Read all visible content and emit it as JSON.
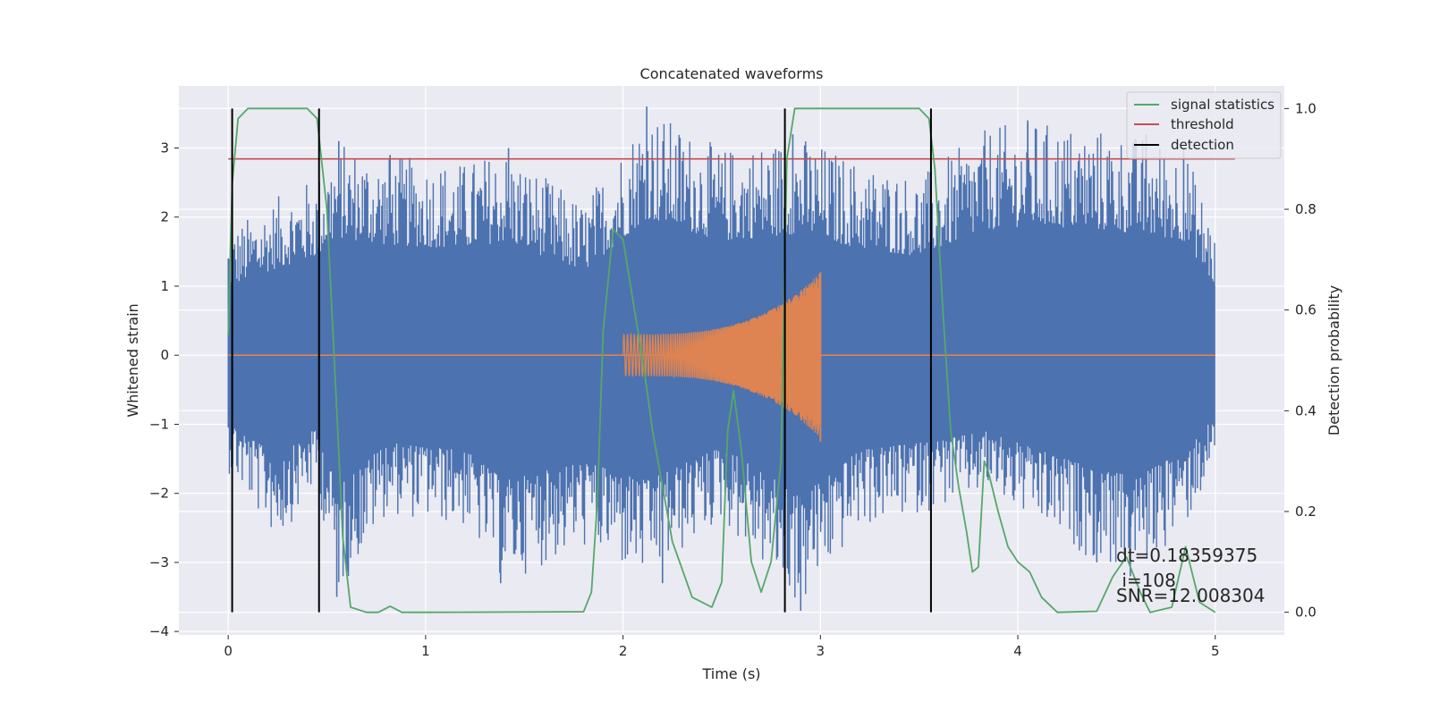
{
  "chart_data": {
    "type": "line",
    "title": "Concatenated waveforms",
    "xlabel": "Time (s)",
    "ylabel": "Whitened strain",
    "y2label": "Detection probability",
    "xlim": [
      -0.25,
      5.35
    ],
    "ylim": [
      -4.05,
      3.9
    ],
    "y2lim": [
      -0.045,
      1.045
    ],
    "x_ticks": [
      0,
      1,
      2,
      3,
      4,
      5
    ],
    "y_ticks": [
      -4,
      -3,
      -2,
      -1,
      0,
      1,
      2,
      3
    ],
    "y2_ticks": [
      0.0,
      0.2,
      0.4,
      0.6,
      0.8,
      1.0
    ],
    "x_tick_labels": [
      "0",
      "1",
      "2",
      "3",
      "4",
      "5"
    ],
    "y_tick_labels": [
      "−4",
      "−3",
      "−2",
      "−1",
      "0",
      "1",
      "2",
      "3"
    ],
    "y2_tick_labels": [
      "0.0",
      "0.2",
      "0.4",
      "0.6",
      "0.8",
      "1.0"
    ],
    "grid": true,
    "legend_position": "top-right",
    "series": [
      {
        "name": "",
        "axis": "left",
        "color": "#4c72b0",
        "kind": "noise",
        "x_range": [
          0,
          5
        ],
        "envelope": [
          {
            "x": 0.0,
            "max": 1.8,
            "min": -1.7
          },
          {
            "x": 0.25,
            "max": 2.3,
            "min": -2.7
          },
          {
            "x": 0.45,
            "max": 2.6,
            "min": -1.9
          },
          {
            "x": 0.55,
            "max": 3.1,
            "min": -3.5
          },
          {
            "x": 0.8,
            "max": 2.9,
            "min": -2.3
          },
          {
            "x": 1.2,
            "max": 2.8,
            "min": -2.5
          },
          {
            "x": 1.4,
            "max": 3.0,
            "min": -3.3
          },
          {
            "x": 1.8,
            "max": 2.2,
            "min": -2.8
          },
          {
            "x": 2.12,
            "max": 3.6,
            "min": -3.3
          },
          {
            "x": 2.5,
            "max": 3.0,
            "min": -2.4
          },
          {
            "x": 2.9,
            "max": 3.2,
            "min": -3.7
          },
          {
            "x": 3.2,
            "max": 2.8,
            "min": -2.5
          },
          {
            "x": 3.5,
            "max": 2.6,
            "min": -2.3
          },
          {
            "x": 3.85,
            "max": 3.3,
            "min": -2.0
          },
          {
            "x": 4.05,
            "max": 3.4,
            "min": -2.4
          },
          {
            "x": 4.4,
            "max": 3.3,
            "min": -3.0
          },
          {
            "x": 4.6,
            "max": 3.2,
            "min": -3.2
          },
          {
            "x": 4.85,
            "max": 3.0,
            "min": -2.5
          },
          {
            "x": 5.0,
            "max": 1.8,
            "min": -1.6
          }
        ],
        "spikes": [
          {
            "x": 0.55,
            "y": -3.5
          },
          {
            "x": 0.56,
            "y": 3.1
          },
          {
            "x": 0.82,
            "y": 2.9
          },
          {
            "x": 1.38,
            "y": -3.3
          },
          {
            "x": 1.42,
            "y": 3.0
          },
          {
            "x": 2.12,
            "y": 3.6
          },
          {
            "x": 2.2,
            "y": -3.3
          },
          {
            "x": 2.9,
            "y": -3.7
          },
          {
            "x": 2.86,
            "y": 3.2
          },
          {
            "x": 4.05,
            "y": 3.4
          },
          {
            "x": 4.4,
            "y": -3.0
          },
          {
            "x": 4.57,
            "y": -3.2
          },
          {
            "x": 4.65,
            "y": 3.2
          },
          {
            "x": 4.84,
            "y": 3.0
          }
        ]
      },
      {
        "name": "",
        "axis": "left",
        "color": "#dd8452",
        "kind": "chirp",
        "x_range": [
          0,
          5
        ],
        "chirp_start": 2.0,
        "chirp_end": 3.0,
        "amp_start": 0.3,
        "amp_end": 1.2,
        "peak_x": 3.0,
        "peak_max": 1.2,
        "peak_min": -1.25
      },
      {
        "name": "signal statistics",
        "axis": "right",
        "color": "#55a868",
        "points": [
          [
            0.0,
            0.55
          ],
          [
            0.02,
            0.85
          ],
          [
            0.05,
            0.98
          ],
          [
            0.1,
            1.0
          ],
          [
            0.4,
            1.0
          ],
          [
            0.45,
            0.98
          ],
          [
            0.5,
            0.8
          ],
          [
            0.55,
            0.4
          ],
          [
            0.58,
            0.15
          ],
          [
            0.62,
            0.01
          ],
          [
            0.7,
            0.0
          ],
          [
            0.76,
            0.0
          ],
          [
            0.82,
            0.012
          ],
          [
            0.88,
            0.0
          ],
          [
            1.0,
            0.0
          ],
          [
            1.8,
            0.001
          ],
          [
            1.84,
            0.04
          ],
          [
            1.87,
            0.22
          ],
          [
            1.9,
            0.56
          ],
          [
            1.95,
            0.76
          ],
          [
            2.0,
            0.74
          ],
          [
            2.05,
            0.62
          ],
          [
            2.1,
            0.5
          ],
          [
            2.15,
            0.36
          ],
          [
            2.25,
            0.14
          ],
          [
            2.35,
            0.03
          ],
          [
            2.45,
            0.01
          ],
          [
            2.5,
            0.06
          ],
          [
            2.53,
            0.36
          ],
          [
            2.56,
            0.44
          ],
          [
            2.6,
            0.32
          ],
          [
            2.65,
            0.1
          ],
          [
            2.7,
            0.04
          ],
          [
            2.75,
            0.1
          ],
          [
            2.8,
            0.3
          ],
          [
            2.83,
            0.9
          ],
          [
            2.87,
            1.0
          ],
          [
            2.9,
            1.0
          ],
          [
            3.5,
            1.0
          ],
          [
            3.55,
            0.98
          ],
          [
            3.58,
            0.88
          ],
          [
            3.62,
            0.6
          ],
          [
            3.66,
            0.36
          ],
          [
            3.7,
            0.25
          ],
          [
            3.74,
            0.16
          ],
          [
            3.77,
            0.08
          ],
          [
            3.8,
            0.09
          ],
          [
            3.83,
            0.3
          ],
          [
            3.85,
            0.28
          ],
          [
            3.9,
            0.2
          ],
          [
            3.95,
            0.13
          ],
          [
            4.0,
            0.1
          ],
          [
            4.06,
            0.08
          ],
          [
            4.12,
            0.03
          ],
          [
            4.2,
            0.0
          ],
          [
            4.4,
            0.002
          ],
          [
            4.48,
            0.07
          ],
          [
            4.55,
            0.11
          ],
          [
            4.62,
            0.04
          ],
          [
            4.67,
            0.0
          ],
          [
            4.78,
            0.01
          ],
          [
            4.85,
            0.13
          ],
          [
            4.92,
            0.02
          ],
          [
            5.0,
            0.0
          ]
        ]
      },
      {
        "name": "threshold",
        "axis": "right",
        "color": "#c44e52",
        "x_range": [
          0,
          5.1
        ],
        "value": 0.9
      },
      {
        "name": "detection",
        "axis": "right",
        "color": "#000000",
        "x": [
          0.02,
          0.46,
          2.82,
          3.56
        ],
        "y_range": [
          0.0,
          1.0
        ]
      }
    ],
    "annotations": [
      "dt=0.18359375",
      " i=108",
      "SNR=12.008304"
    ]
  }
}
